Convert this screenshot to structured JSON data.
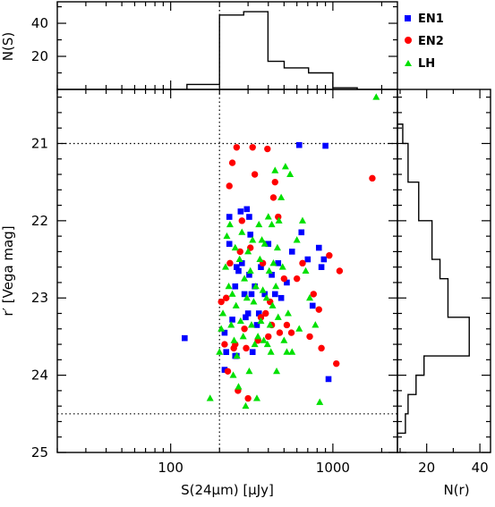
{
  "chart_data": [
    {
      "panel": "main-scatter",
      "type": "scatter",
      "xlabel": "S(24μm) [μJy]",
      "ylabel": "r′ [Vega mag]",
      "xscale": "log",
      "xlim": [
        20,
        2500
      ],
      "ylim": [
        25,
        20.3
      ],
      "xticks": [
        100,
        1000
      ],
      "xtick_labels": [
        "100",
        "1000"
      ],
      "yticks": [
        21,
        22,
        23,
        24,
        25
      ],
      "ytick_labels": [
        "21",
        "22",
        "23",
        "24",
        "25"
      ],
      "reference_lines": {
        "vertical_x": [
          200
        ],
        "horizontal_y": [
          21,
          24.5
        ]
      },
      "legend_position": "top-right",
      "series": [
        {
          "name": "EN1",
          "color": "#0000ff",
          "marker": "square",
          "points": [
            [
              122,
              23.52
            ],
            [
              215,
              23.45
            ],
            [
              215,
              23.93
            ],
            [
              220,
              23.7
            ],
            [
              230,
              22.3
            ],
            [
              230,
              21.95
            ],
            [
              240,
              23.28
            ],
            [
              250,
              22.85
            ],
            [
              250,
              23.75
            ],
            [
              255,
              23.75
            ],
            [
              255,
              22.6
            ],
            [
              262,
              22.65
            ],
            [
              270,
              21.88
            ],
            [
              275,
              22.55
            ],
            [
              285,
              22.95
            ],
            [
              290,
              23.25
            ],
            [
              295,
              21.85
            ],
            [
              300,
              23.2
            ],
            [
              305,
              22.7
            ],
            [
              305,
              21.95
            ],
            [
              310,
              22.18
            ],
            [
              315,
              22.95
            ],
            [
              320,
              23.7
            ],
            [
              330,
              22.85
            ],
            [
              340,
              23.35
            ],
            [
              350,
              23.2
            ],
            [
              360,
              22.6
            ],
            [
              380,
              22.95
            ],
            [
              400,
              22.3
            ],
            [
              420,
              22.7
            ],
            [
              440,
              22.95
            ],
            [
              460,
              22.55
            ],
            [
              480,
              23.0
            ],
            [
              520,
              22.8
            ],
            [
              560,
              22.4
            ],
            [
              620,
              21.02
            ],
            [
              640,
              22.15
            ],
            [
              700,
              22.5
            ],
            [
              750,
              23.1
            ],
            [
              820,
              22.35
            ],
            [
              850,
              22.6
            ],
            [
              880,
              22.5
            ],
            [
              900,
              21.03
            ],
            [
              940,
              24.05
            ]
          ]
        },
        {
          "name": "EN2",
          "color": "#ff0000",
          "marker": "circle",
          "points": [
            [
              205,
              23.05
            ],
            [
              215,
              23.6
            ],
            [
              220,
              23.0
            ],
            [
              225,
              23.95
            ],
            [
              230,
              21.55
            ],
            [
              232,
              22.55
            ],
            [
              240,
              21.25
            ],
            [
              245,
              23.65
            ],
            [
              250,
              23.6
            ],
            [
              255,
              21.05
            ],
            [
              260,
              24.2
            ],
            [
              268,
              22.4
            ],
            [
              275,
              22.0
            ],
            [
              285,
              23.4
            ],
            [
              292,
              23.65
            ],
            [
              300,
              24.3
            ],
            [
              310,
              22.35
            ],
            [
              320,
              21.05
            ],
            [
              330,
              21.4
            ],
            [
              345,
              23.55
            ],
            [
              360,
              23.25
            ],
            [
              370,
              22.55
            ],
            [
              385,
              23.2
            ],
            [
              395,
              21.07
            ],
            [
              400,
              23.5
            ],
            [
              410,
              23.05
            ],
            [
              420,
              23.35
            ],
            [
              430,
              21.7
            ],
            [
              440,
              21.5
            ],
            [
              460,
              21.95
            ],
            [
              470,
              23.45
            ],
            [
              500,
              22.75
            ],
            [
              520,
              23.35
            ],
            [
              555,
              23.45
            ],
            [
              600,
              22.75
            ],
            [
              650,
              22.55
            ],
            [
              720,
              23.5
            ],
            [
              760,
              22.95
            ],
            [
              820,
              23.15
            ],
            [
              850,
              23.65
            ],
            [
              950,
              22.45
            ],
            [
              1050,
              23.85
            ],
            [
              1100,
              22.65
            ],
            [
              1750,
              21.45
            ]
          ]
        },
        {
          "name": "LH",
          "color": "#00e000",
          "marker": "triangle",
          "points": [
            [
              175,
              24.3
            ],
            [
              200,
              23.7
            ],
            [
              205,
              23.4
            ],
            [
              210,
              23.2
            ],
            [
              218,
              22.6
            ],
            [
              222,
              22.2
            ],
            [
              228,
              22.85
            ],
            [
              232,
              22.05
            ],
            [
              236,
              23.35
            ],
            [
              240,
              22.95
            ],
            [
              243,
              24.0
            ],
            [
              246,
              23.55
            ],
            [
              250,
              22.35
            ],
            [
              253,
              23.1
            ],
            [
              256,
              23.75
            ],
            [
              262,
              24.15
            ],
            [
              266,
              22.5
            ],
            [
              270,
              23.3
            ],
            [
              275,
              22.15
            ],
            [
              280,
              23.5
            ],
            [
              285,
              22.75
            ],
            [
              290,
              24.4
            ],
            [
              295,
              23.0
            ],
            [
              300,
              22.4
            ],
            [
              305,
              23.95
            ],
            [
              310,
              22.65
            ],
            [
              315,
              23.35
            ],
            [
              320,
              22.25
            ],
            [
              325,
              23.05
            ],
            [
              330,
              23.6
            ],
            [
              335,
              22.85
            ],
            [
              340,
              24.3
            ],
            [
              345,
              23.5
            ],
            [
              350,
              22.05
            ],
            [
              355,
              22.5
            ],
            [
              360,
              23.3
            ],
            [
              365,
              22.25
            ],
            [
              370,
              22.9
            ],
            [
              375,
              23.55
            ],
            [
              380,
              22.3
            ],
            [
              390,
              23.0
            ],
            [
              395,
              23.6
            ],
            [
              400,
              21.95
            ],
            [
              405,
              22.65
            ],
            [
              410,
              23.35
            ],
            [
              415,
              23.7
            ],
            [
              420,
              22.05
            ],
            [
              425,
              23.1
            ],
            [
              430,
              22.55
            ],
            [
              440,
              21.35
            ],
            [
              445,
              22.85
            ],
            [
              450,
              23.95
            ],
            [
              455,
              22.35
            ],
            [
              460,
              23.25
            ],
            [
              465,
              22.0
            ],
            [
              480,
              21.7
            ],
            [
              490,
              22.6
            ],
            [
              500,
              23.55
            ],
            [
              510,
              21.3
            ],
            [
              520,
              23.7
            ],
            [
              530,
              23.2
            ],
            [
              545,
              21.4
            ],
            [
              560,
              23.7
            ],
            [
              600,
              22.25
            ],
            [
              620,
              23.4
            ],
            [
              650,
              22.0
            ],
            [
              680,
              22.65
            ],
            [
              720,
              23.0
            ],
            [
              780,
              23.35
            ],
            [
              830,
              24.35
            ],
            [
              1850,
              20.4
            ]
          ]
        }
      ]
    },
    {
      "panel": "top-histogram",
      "type": "histogram",
      "ylabel": "N(S)",
      "yticks": [
        20,
        40
      ],
      "ytick_labels": [
        "20",
        "40"
      ],
      "ylim": [
        0,
        53
      ],
      "bin_edges": [
        126,
        200,
        282,
        398,
        501,
        708,
        1000,
        1413
      ],
      "counts": [
        3,
        45,
        47,
        17,
        13,
        10,
        1
      ]
    },
    {
      "panel": "right-histogram",
      "type": "histogram",
      "xlabel": "N(r)",
      "xticks": [
        20,
        40
      ],
      "xtick_labels": [
        "20",
        "40"
      ],
      "xlim": [
        9,
        44
      ],
      "bin_edges": [
        24.75,
        24.5,
        24.25,
        24.0,
        23.75,
        23.5,
        23.25,
        23.0,
        22.75,
        22.5,
        22.25,
        22.0,
        21.75,
        21.5,
        21.25,
        21.0,
        20.75
      ],
      "counts": [
        12,
        13,
        16,
        19,
        36,
        36,
        28,
        28,
        25,
        22,
        22,
        17,
        17,
        13,
        13,
        11
      ]
    }
  ]
}
